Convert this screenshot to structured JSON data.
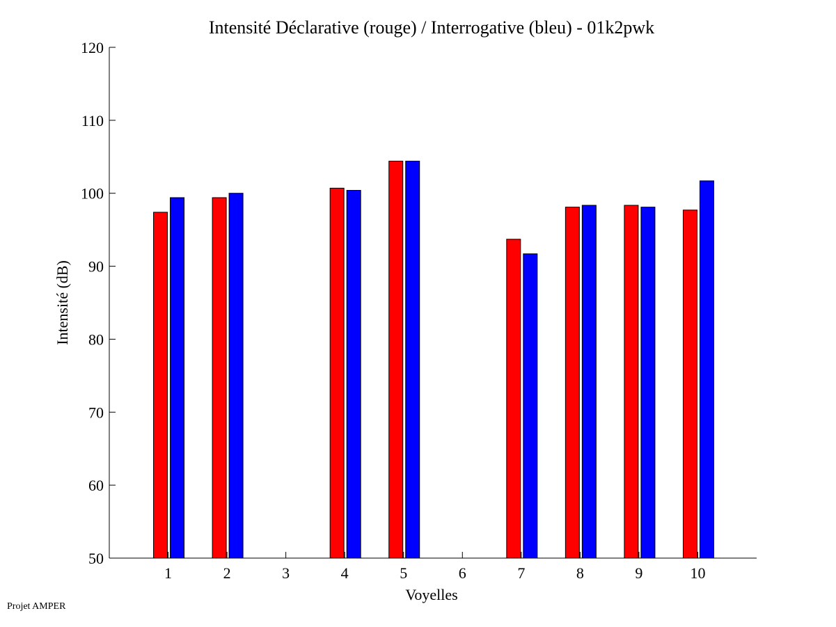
{
  "chart_data": {
    "type": "bar",
    "title": "Intensité Déclarative (rouge) / Interrogative (bleu) - 01k2pwk",
    "xlabel": "Voyelles",
    "ylabel": "Intensité (dB)",
    "xlim": [
      0,
      11
    ],
    "ylim": [
      50,
      120
    ],
    "yticks": [
      50,
      60,
      70,
      80,
      90,
      100,
      110,
      120
    ],
    "categories": [
      1,
      2,
      3,
      4,
      5,
      6,
      7,
      8,
      9,
      10
    ],
    "grid": false,
    "series": [
      {
        "name": "Déclarative",
        "color": "#ff0000",
        "values": [
          97.4,
          99.4,
          null,
          100.7,
          104.4,
          null,
          93.7,
          98.1,
          98.35,
          97.7
        ]
      },
      {
        "name": "Interrogative",
        "color": "#0000ff",
        "values": [
          99.4,
          100.0,
          null,
          100.4,
          104.4,
          null,
          91.7,
          98.35,
          98.1,
          101.7
        ]
      }
    ]
  },
  "footer": "Projet AMPER"
}
